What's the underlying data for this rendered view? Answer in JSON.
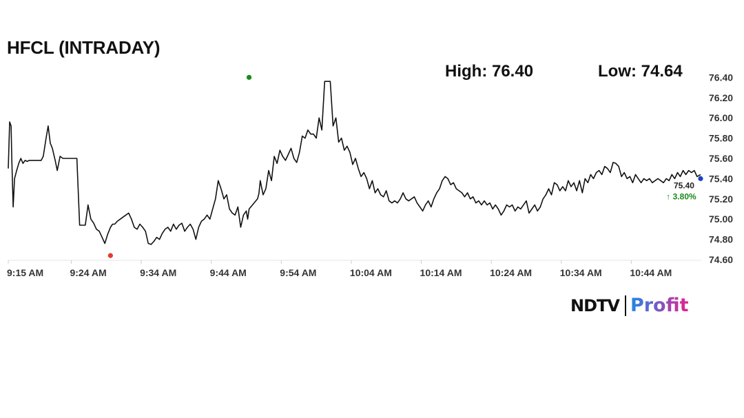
{
  "header": {
    "title": "HFCL (INTRADAY)",
    "high_label": "High: 76.40",
    "low_label": "Low: 74.64"
  },
  "brand": {
    "name_left": "NDTV",
    "name_right": "Profit"
  },
  "colors": {
    "line": "#111111",
    "high_marker": "#1a8a1a",
    "low_marker": "#e53935",
    "last_marker": "#1e40c8",
    "change_positive": "#1a8a1a",
    "grid": "#e6e6e6"
  },
  "chart_data": {
    "type": "line",
    "title": "HFCL (INTRADAY)",
    "x_ticks": [
      "9:15 AM",
      "9:24 AM",
      "9:34 AM",
      "9:44 AM",
      "9:54 AM",
      "10:04 AM",
      "10:14 AM",
      "10:24 AM",
      "10:34 AM",
      "10:44 AM"
    ],
    "x_tick_minutes": [
      0,
      9,
      19,
      29,
      39,
      49,
      59,
      69,
      79,
      89
    ],
    "xlim_minutes": [
      0,
      99
    ],
    "y_ticks": [
      "76.40",
      "76.20",
      "76.00",
      "75.80",
      "75.60",
      "75.40",
      "75.20",
      "75.00",
      "74.80",
      "74.60"
    ],
    "ylim": [
      74.6,
      76.45
    ],
    "grid": "horizontal-baseline-only",
    "high": {
      "minute": 34.4,
      "value": 76.4
    },
    "low": {
      "minute": 14.6,
      "value": 74.64
    },
    "last": {
      "minute": 98.9,
      "value": 75.4,
      "label": "75.40",
      "change": "↑ 3.80%"
    },
    "series": [
      {
        "minutes": [
          0,
          0.2,
          0.4,
          0.5,
          0.7,
          0.9,
          1.2,
          1.5,
          1.8,
          2.1,
          2.4,
          2.7,
          3.0,
          3.3,
          3.6,
          4.0,
          4.3,
          4.7,
          5.0,
          5.4,
          5.7,
          6.0,
          6.3,
          6.7,
          7.0,
          7.4,
          7.8,
          8.2,
          8.6,
          9.0,
          9.4,
          9.8,
          10.2,
          10.6,
          11.0,
          11.4,
          11.8,
          12.2,
          12.6,
          13.0,
          13.4,
          13.8,
          14.2,
          14.6,
          14.9,
          15.2,
          15.6,
          16.0,
          16.4,
          16.8,
          17.2,
          17.6,
          18.0,
          18.4,
          18.8,
          19.2,
          19.6,
          20.0,
          20.4,
          20.8,
          21.2,
          21.6,
          22.0,
          22.4,
          22.8,
          23.2,
          23.6,
          24.0,
          24.4,
          24.8,
          25.2,
          25.6,
          26.0,
          26.4,
          26.8,
          27.2,
          27.6,
          28.0,
          28.4,
          28.8,
          29.2,
          29.6,
          30.0,
          30.4,
          30.8,
          31.2,
          31.6,
          32.0,
          32.4,
          32.8,
          33.2,
          33.6,
          34.0,
          34.2,
          34.4,
          35.6,
          35.8,
          36.0,
          36.4,
          36.8,
          37.2,
          37.6,
          38.0,
          38.4,
          38.8,
          39.2,
          39.6,
          40.0,
          40.4,
          40.8,
          41.2,
          41.6,
          42.0,
          42.4,
          42.8,
          43.2,
          43.6,
          44.0,
          44.4,
          44.8,
          45.2,
          45.6,
          46.0,
          46.4,
          46.8,
          47.2,
          47.6,
          48.0,
          48.4,
          48.8,
          49.2,
          49.6,
          50.0,
          50.4,
          50.8,
          51.2,
          51.6,
          52.0,
          52.4,
          52.8,
          53.2,
          53.6,
          54.0,
          54.4,
          54.8,
          55.2,
          55.6,
          56.0,
          56.4,
          56.8,
          57.2,
          57.6,
          58.0,
          58.4,
          58.8,
          59.2,
          59.6,
          60.0,
          60.4,
          60.8,
          61.2,
          61.6,
          62.0,
          62.4,
          62.8,
          63.2,
          63.6,
          64.0,
          64.4,
          64.8,
          65.2,
          65.6,
          66.0,
          66.4,
          66.8,
          67.2,
          67.6,
          68.0,
          68.4,
          68.8,
          69.2,
          69.6,
          70.0,
          70.4,
          70.8,
          71.2,
          71.6,
          72.0,
          72.4,
          72.8,
          73.2,
          73.6,
          74.0,
          74.4,
          74.8,
          75.2,
          75.6,
          76.0,
          76.4,
          76.8,
          77.2,
          77.6,
          78.0,
          78.4,
          78.8,
          79.2,
          79.6,
          80.0,
          80.4,
          80.8,
          81.2,
          81.6,
          82.0,
          82.4,
          82.8,
          83.2,
          83.6,
          84.0,
          84.4,
          84.8,
          85.2,
          85.6,
          86.0,
          86.4,
          86.8,
          87.2,
          87.6,
          88.0,
          88.4,
          88.8,
          89.2,
          89.6,
          90.0,
          90.4,
          90.8,
          91.2,
          91.6,
          92.0,
          92.4,
          92.8,
          93.2,
          93.6,
          94.0,
          94.4,
          94.8,
          95.2,
          95.6,
          96.0,
          96.4,
          96.8,
          97.2,
          97.6,
          98.0,
          98.4,
          98.9
        ],
        "values": [
          75.5,
          75.96,
          75.92,
          75.6,
          75.12,
          75.4,
          75.48,
          75.55,
          75.6,
          75.55,
          75.58,
          75.57,
          75.58,
          75.58,
          75.58,
          75.58,
          75.58,
          75.58,
          75.62,
          75.8,
          75.92,
          75.75,
          75.7,
          75.58,
          75.48,
          75.62,
          75.6,
          75.6,
          75.6,
          75.6,
          75.6,
          75.6,
          74.94,
          74.94,
          74.94,
          75.14,
          75.0,
          74.96,
          74.9,
          74.88,
          74.82,
          74.76,
          74.85,
          74.92,
          74.95,
          74.95,
          74.98,
          75.0,
          75.02,
          75.04,
          75.06,
          75.0,
          74.92,
          74.9,
          74.95,
          74.92,
          74.88,
          74.76,
          74.75,
          74.78,
          74.82,
          74.8,
          74.86,
          74.9,
          74.92,
          74.88,
          74.95,
          74.9,
          74.94,
          74.96,
          74.88,
          74.92,
          74.95,
          74.9,
          74.8,
          74.92,
          74.98,
          75.0,
          75.04,
          75.0,
          75.1,
          75.2,
          75.38,
          75.3,
          75.2,
          75.24,
          75.1,
          75.06,
          75.04,
          75.12,
          74.92,
          75.04,
          75.08,
          75.0,
          75.1,
          75.2,
          75.25,
          75.38,
          75.24,
          75.3,
          75.48,
          75.38,
          75.62,
          75.55,
          75.68,
          75.62,
          75.58,
          75.64,
          75.7,
          75.6,
          75.56,
          75.66,
          75.82,
          75.8,
          75.88,
          75.84,
          75.84,
          75.8,
          76.0,
          75.88,
          76.36,
          76.36,
          76.36,
          75.92,
          76.0,
          75.76,
          75.8,
          75.68,
          75.72,
          75.66,
          75.54,
          75.6,
          75.5,
          75.42,
          75.46,
          75.4,
          75.3,
          75.38,
          75.26,
          75.3,
          75.24,
          75.22,
          75.28,
          75.18,
          75.16,
          75.18,
          75.16,
          75.2,
          75.26,
          75.2,
          75.18,
          75.2,
          75.22,
          75.16,
          75.12,
          75.08,
          75.14,
          75.18,
          75.12,
          75.2,
          75.26,
          75.3,
          75.38,
          75.42,
          75.4,
          75.34,
          75.36,
          75.3,
          75.28,
          75.26,
          75.22,
          75.26,
          75.2,
          75.22,
          75.16,
          75.18,
          75.14,
          75.18,
          75.14,
          75.16,
          75.1,
          75.14,
          75.1,
          75.04,
          75.08,
          75.14,
          75.12,
          75.14,
          75.08,
          75.12,
          75.1,
          75.14,
          75.18,
          75.06,
          75.1,
          75.14,
          75.08,
          75.12,
          75.2,
          75.24,
          75.3,
          75.24,
          75.36,
          75.34,
          75.28,
          75.32,
          75.28,
          75.38,
          75.32,
          75.36,
          75.28,
          75.38,
          75.26,
          75.4,
          75.36,
          75.44,
          75.4,
          75.46,
          75.48,
          75.44,
          75.52,
          75.5,
          75.46,
          75.56,
          75.55,
          75.52,
          75.42,
          75.46,
          75.4,
          75.42,
          75.36,
          75.44,
          75.4,
          75.36,
          75.4,
          75.38,
          75.4,
          75.36,
          75.38,
          75.4,
          75.38,
          75.36,
          75.4,
          75.38,
          75.44,
          75.4,
          75.46,
          75.42,
          75.48,
          75.44,
          75.48,
          75.46,
          75.48,
          75.42,
          75.44,
          75.48,
          75.44,
          75.46,
          75.4,
          75.36,
          75.42,
          75.38,
          75.46,
          75.4,
          75.42,
          75.4,
          75.42,
          75.5,
          75.46,
          75.44,
          75.4
        ]
      }
    ]
  }
}
